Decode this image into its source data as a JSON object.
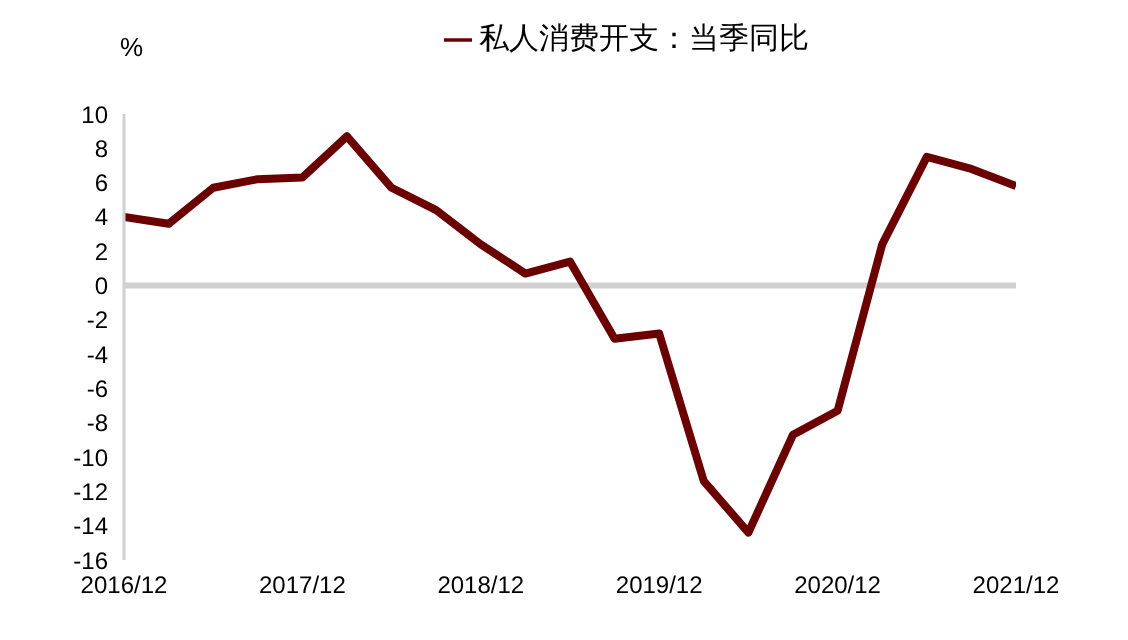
{
  "chart_data": {
    "type": "line",
    "ylabel": "%",
    "legend": "top",
    "grid": false,
    "marker": "none",
    "line_style": "solid",
    "x": [
      "2016-12",
      "2017-03",
      "2017-06",
      "2017-09",
      "2017-12",
      "2018-03",
      "2018-06",
      "2018-09",
      "2018-12",
      "2019-03",
      "2019-06",
      "2019-09",
      "2019-12",
      "2020-03",
      "2020-06",
      "2020-09",
      "2020-12",
      "2021-03",
      "2021-06",
      "2021-09",
      "2021-12"
    ],
    "series": [
      {
        "name": "私人消费开支：当季同比",
        "color": "#6b0000",
        "values": [
          4.0,
          3.6,
          5.7,
          6.2,
          6.3,
          8.7,
          5.7,
          4.4,
          2.4,
          0.7,
          1.4,
          -3.1,
          -2.8,
          -11.4,
          -14.4,
          -8.7,
          -7.3,
          2.4,
          7.5,
          6.8,
          5.8
        ]
      }
    ],
    "xlim": [
      "2016-12",
      "2021-12"
    ],
    "xticks": [
      {
        "value": "2016-12",
        "label": "2016/12"
      },
      {
        "value": "2017-12",
        "label": "2017/12"
      },
      {
        "value": "2018-12",
        "label": "2018/12"
      },
      {
        "value": "2019-12",
        "label": "2019/12"
      },
      {
        "value": "2020-12",
        "label": "2020/12"
      },
      {
        "value": "2021-12",
        "label": "2021/12"
      }
    ],
    "ref_lines": [
      {
        "axis": "y",
        "value": 0,
        "color": "#d0d0d0"
      }
    ],
    "ylim": [
      -16,
      10
    ],
    "yticks": [
      -16,
      -14,
      -12,
      -10,
      -8,
      -6,
      -4,
      -2,
      0,
      2,
      4,
      6,
      8,
      10
    ]
  }
}
